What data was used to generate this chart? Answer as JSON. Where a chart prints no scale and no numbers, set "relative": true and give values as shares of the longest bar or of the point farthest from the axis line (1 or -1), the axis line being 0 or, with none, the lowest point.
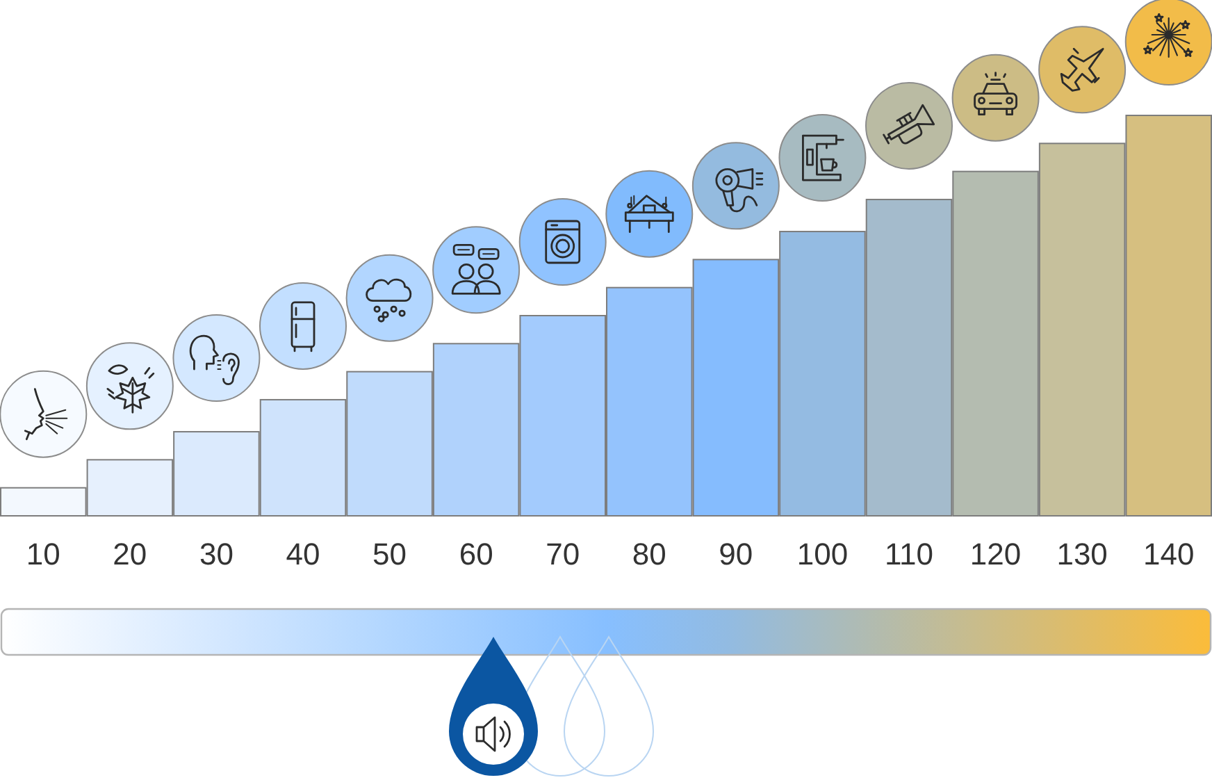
{
  "chart_data": {
    "type": "bar",
    "relative": true,
    "categories": [
      "10",
      "20",
      "30",
      "40",
      "50",
      "60",
      "70",
      "80",
      "90",
      "100",
      "110",
      "120",
      "130",
      "140"
    ],
    "values": [
      0.07,
      0.14,
      0.21,
      0.29,
      0.36,
      0.43,
      0.5,
      0.57,
      0.64,
      0.71,
      0.79,
      0.86,
      0.93,
      1
    ],
    "colors": [
      "#f3f8fe",
      "#e6f0fd",
      "#dbeafd",
      "#cfe3fc",
      "#c0dbfc",
      "#b0d2fc",
      "#a3cbfd",
      "#94c3fd",
      "#85bcfe",
      "#94bbe2",
      "#a4bbcc",
      "#b4bcb0",
      "#c6c09c",
      "#d6bf80"
    ]
  }
}
